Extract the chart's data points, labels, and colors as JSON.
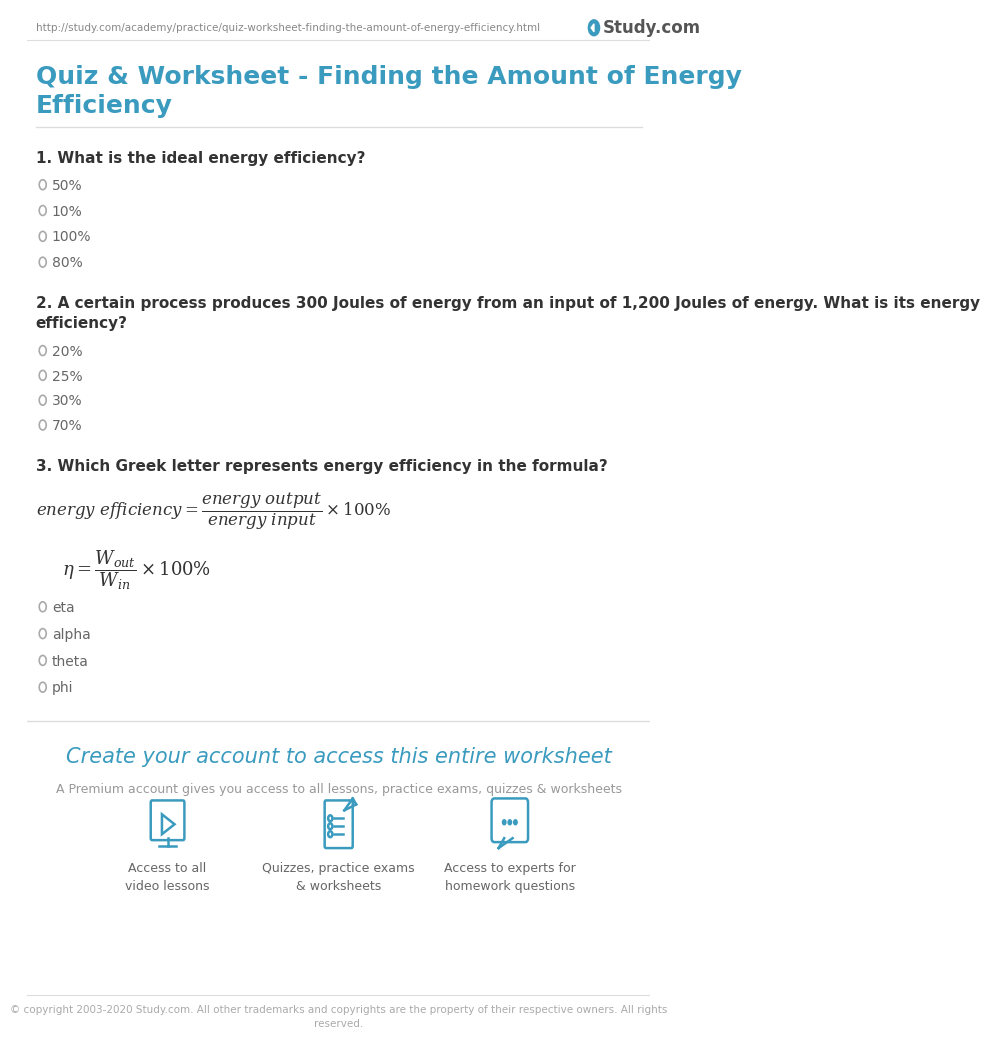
{
  "url": "http://study.com/academy/practice/quiz-worksheet-finding-the-amount-of-energy-efficiency.html",
  "logo_text": "Study.com",
  "page_title": "Quiz & Worksheet - Finding the Amount of Energy\nEfficiency",
  "title_color": "#3a9bbf",
  "bg_color": "#ffffff",
  "text_color": "#555555",
  "question_color": "#333333",
  "url_color": "#888888",
  "questions": [
    {
      "number": "1.",
      "text": "What is the ideal energy efficiency?",
      "options": [
        "50%",
        "10%",
        "100%",
        "80%"
      ]
    },
    {
      "number": "2.",
      "text": "A certain process produces 300 Joules of energy from an input of 1,200 Joules of energy. What is its energy\nefficiency?",
      "options": [
        "20%",
        "25%",
        "30%",
        "70%"
      ]
    },
    {
      "number": "3.",
      "text": "Which Greek letter represents energy efficiency in the formula?",
      "options": [
        "eta",
        "alpha",
        "theta",
        "phi"
      ]
    }
  ],
  "formula_color": "#333333",
  "cta_text": "Create your account to access this entire worksheet",
  "cta_color": "#3a9bbf",
  "cta_sub": "A Premium account gives you access to all lessons, practice exams, quizzes & worksheets",
  "icon_labels": [
    "Access to all\nvideo lessons",
    "Quizzes, practice exams\n& worksheets",
    "Access to experts for\nhomework questions"
  ],
  "copyright": "© copyright 2003-2020 Study.com. All other trademarks and copyrights are the property of their respective owners. All rights\nreserved.",
  "radio_color": "#aaaaaa",
  "divider_color": "#dddddd"
}
